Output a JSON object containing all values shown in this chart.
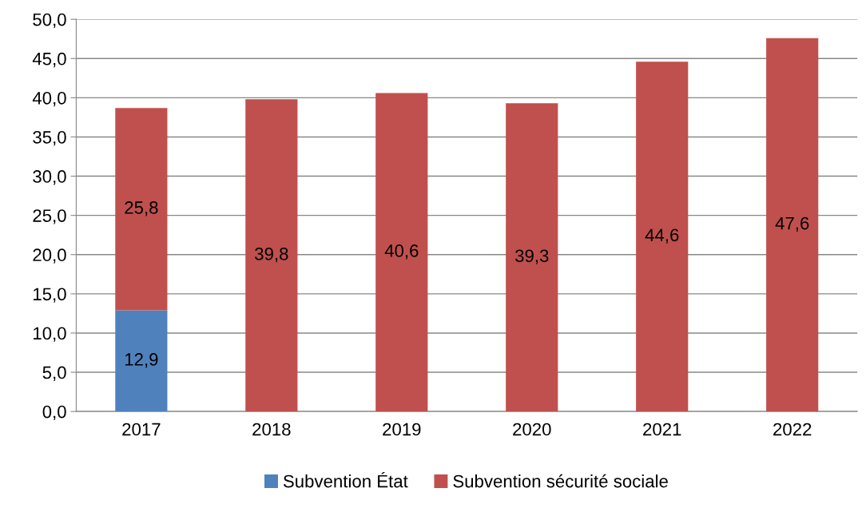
{
  "chart_data": {
    "type": "bar",
    "stacked": true,
    "categories": [
      "2017",
      "2018",
      "2019",
      "2020",
      "2021",
      "2022"
    ],
    "series": [
      {
        "name": "Subvention État",
        "color": "#4f81bd",
        "values": [
          12.9,
          null,
          null,
          null,
          null,
          null
        ],
        "value_labels": [
          "12,9",
          null,
          null,
          null,
          null,
          null
        ]
      },
      {
        "name": "Subvention sécurité sociale",
        "color": "#c0504d",
        "values": [
          25.8,
          39.8,
          40.6,
          39.3,
          44.6,
          47.6
        ],
        "value_labels": [
          "25,8",
          "39,8",
          "40,6",
          "39,3",
          "44,6",
          "47,6"
        ]
      }
    ],
    "ylim": [
      0,
      50
    ],
    "yticks": [
      {
        "value": 0,
        "label": "0,0"
      },
      {
        "value": 5,
        "label": "5,0"
      },
      {
        "value": 10,
        "label": "10,0"
      },
      {
        "value": 15,
        "label": "15,0"
      },
      {
        "value": 20,
        "label": "20,0"
      },
      {
        "value": 25,
        "label": "25,0"
      },
      {
        "value": 30,
        "label": "30,0"
      },
      {
        "value": 35,
        "label": "35,0"
      },
      {
        "value": 40,
        "label": "40,0"
      },
      {
        "value": 45,
        "label": "45,0"
      },
      {
        "value": 50,
        "label": "50,0"
      }
    ],
    "grid": "y",
    "legend": "bottom"
  }
}
